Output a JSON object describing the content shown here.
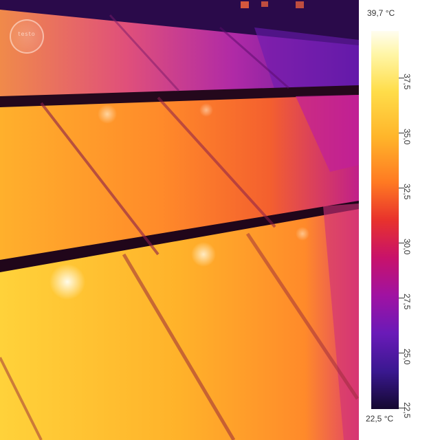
{
  "scale": {
    "max_label": "39,7 °C",
    "min_label": "22,5 °C",
    "ticks": [
      "37,5",
      "35,0",
      "32,5",
      "30,0",
      "27,5",
      "25,0",
      "22,5"
    ]
  },
  "image": {
    "subject": "thermal view of solar panels",
    "palette": "iron",
    "logo": "testo"
  }
}
